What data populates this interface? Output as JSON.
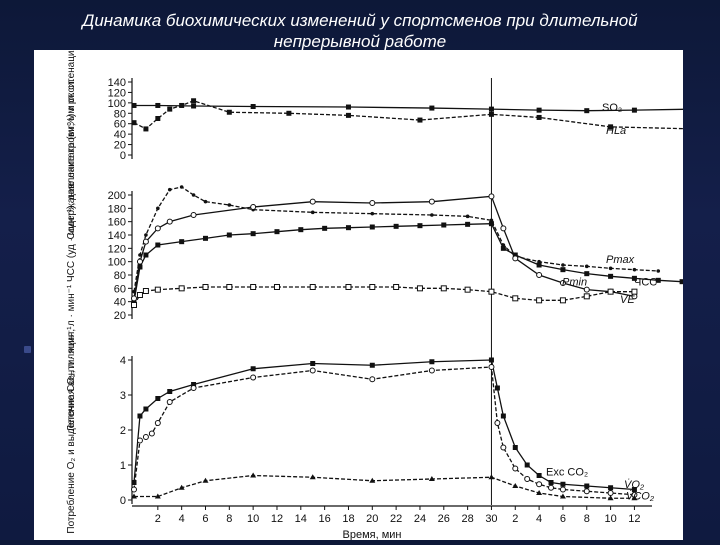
{
  "slide": {
    "title_line1": "Динамика биохимических изменений у спортсменов при длительной",
    "title_line2": "непрерывной работе"
  },
  "chart_data": [
    {
      "type": "line",
      "ylabel": "Содержание лактата (мг%) и оксигенация крови (%)",
      "yticks": [
        "0",
        "20",
        "40",
        "60",
        "80",
        "100",
        "120",
        "140"
      ],
      "ylim": [
        0,
        140
      ],
      "series": [
        {
          "name": "SO₂",
          "marker": "square",
          "x": [
            0,
            2,
            5,
            10,
            18,
            25,
            30,
            34,
            38,
            42,
            47,
            52
          ],
          "y": [
            95,
            95,
            94,
            93,
            92,
            90,
            88,
            86,
            85,
            86,
            88,
            92
          ]
        },
        {
          "name": "HLa",
          "marker": "square-dash",
          "x": [
            0,
            1,
            2,
            3,
            4,
            5,
            8,
            13,
            18,
            24,
            30,
            34,
            40,
            47
          ],
          "y": [
            62,
            50,
            70,
            88,
            95,
            104,
            82,
            80,
            76,
            67,
            78,
            72,
            54,
            50
          ]
        }
      ]
    },
    {
      "type": "line",
      "ylabel": "Легочная вентиляция, л · мин⁻¹ ЧСС (уд · мин⁻¹), давление крови, мм рт. ст.",
      "yticks": [
        "20",
        "40",
        "60",
        "80",
        "100",
        "120",
        "140",
        "160",
        "180",
        "200"
      ],
      "ylim": [
        20,
        200
      ],
      "labels": [
        "Pmax",
        "Pmin",
        "ЧСС",
        "V̇E"
      ],
      "series": [
        {
          "name": "Pmax",
          "marker": "dot",
          "x": [
            0,
            0.5,
            1,
            2,
            3,
            4,
            5,
            6,
            8,
            10,
            15,
            20,
            25,
            28,
            30,
            31,
            32,
            34,
            36,
            38,
            40,
            42,
            44
          ],
          "y": [
            55,
            110,
            140,
            180,
            208,
            212,
            200,
            190,
            185,
            178,
            174,
            172,
            170,
            168,
            162,
            125,
            108,
            100,
            95,
            93,
            90,
            88,
            86
          ]
        },
        {
          "name": "ЧСС",
          "marker": "square",
          "x": [
            0,
            0.5,
            1,
            2,
            4,
            6,
            8,
            10,
            12,
            14,
            16,
            18,
            20,
            22,
            24,
            26,
            28,
            30,
            31,
            32,
            34,
            36,
            38,
            40,
            42,
            44,
            46
          ],
          "y": [
            40,
            92,
            110,
            125,
            130,
            135,
            140,
            142,
            145,
            148,
            150,
            151,
            152,
            153,
            154,
            155,
            156,
            157,
            120,
            110,
            95,
            88,
            82,
            78,
            75,
            72,
            70
          ]
        },
        {
          "name": "Pmin",
          "marker": "circle",
          "x": [
            0,
            0.5,
            1,
            2,
            3,
            5,
            10,
            15,
            20,
            25,
            30,
            31,
            32,
            34,
            36,
            38,
            40,
            42
          ],
          "y": [
            45,
            100,
            130,
            150,
            160,
            170,
            182,
            190,
            188,
            190,
            198,
            150,
            105,
            80,
            68,
            58,
            55,
            48
          ]
        },
        {
          "name": "V̇E",
          "marker": "open-square",
          "x": [
            0,
            0.5,
            1,
            2,
            4,
            6,
            8,
            10,
            12,
            15,
            18,
            20,
            22,
            24,
            26,
            28,
            30,
            32,
            34,
            36,
            38,
            40,
            42
          ],
          "y": [
            35,
            50,
            56,
            58,
            60,
            62,
            62,
            62,
            62,
            62,
            62,
            62,
            62,
            60,
            60,
            58,
            55,
            45,
            42,
            42,
            48,
            55,
            55
          ]
        }
      ]
    },
    {
      "type": "line",
      "xlabel": "Время, мин",
      "ylabel": "Потребление O₂ и выделение CO₂, л · мин⁻¹",
      "xticks": [
        "2",
        "4",
        "6",
        "8",
        "10",
        "12",
        "14",
        "16",
        "18",
        "20",
        "22",
        "24",
        "26",
        "28",
        "30",
        "2",
        "4",
        "6",
        "8",
        "10",
        "12"
      ],
      "yticks": [
        "0",
        "1",
        "2",
        "3",
        "4"
      ],
      "ylim": [
        0,
        4
      ],
      "labels": [
        "Exc CO₂",
        "V̇O₂",
        "V̇CO₂"
      ],
      "series": [
        {
          "name": "V̇O₂",
          "marker": "square",
          "x": [
            0,
            0.5,
            1,
            2,
            3,
            5,
            10,
            15,
            20,
            25,
            30,
            30.5,
            31,
            32,
            33,
            34,
            35,
            36,
            38,
            40,
            42
          ],
          "y": [
            0.5,
            2.4,
            2.6,
            2.9,
            3.1,
            3.3,
            3.75,
            3.9,
            3.85,
            3.95,
            4.0,
            3.2,
            2.4,
            1.5,
            1.0,
            0.7,
            0.5,
            0.45,
            0.4,
            0.35,
            0.3
          ]
        },
        {
          "name": "Exc CO₂",
          "marker": "open-circle",
          "x": [
            0,
            0.5,
            1,
            1.5,
            2,
            3,
            5,
            10,
            15,
            20,
            25,
            30,
            30.5,
            31,
            32,
            33,
            34,
            35,
            36,
            38,
            40,
            42
          ],
          "y": [
            0.3,
            1.7,
            1.8,
            1.9,
            2.2,
            2.8,
            3.2,
            3.5,
            3.7,
            3.45,
            3.7,
            3.8,
            2.2,
            1.5,
            0.9,
            0.6,
            0.45,
            0.35,
            0.3,
            0.25,
            0.2,
            0.15
          ]
        },
        {
          "name": "V̇CO₂",
          "marker": "triangle",
          "x": [
            0,
            2,
            4,
            6,
            10,
            15,
            20,
            25,
            30,
            32,
            34,
            36,
            40,
            42
          ],
          "y": [
            0.1,
            0.1,
            0.35,
            0.55,
            0.7,
            0.65,
            0.55,
            0.6,
            0.65,
            0.4,
            0.2,
            0.1,
            0.05,
            0.05
          ]
        }
      ]
    }
  ]
}
